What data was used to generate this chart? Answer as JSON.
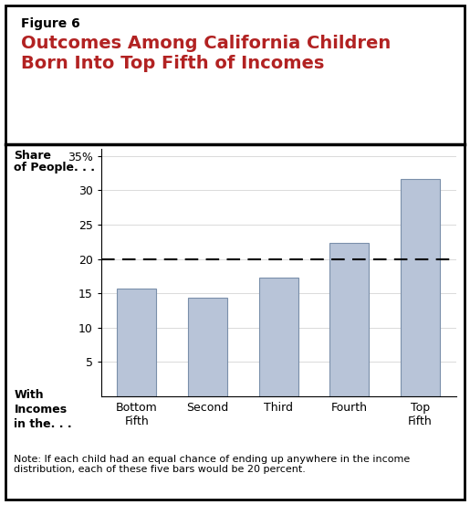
{
  "figure_label": "Figure 6",
  "title_line1": "Outcomes Among California Children",
  "title_line2": "Born Into Top Fifth of Incomes",
  "title_color": "#b22222",
  "categories": [
    "Bottom\nFifth",
    "Second",
    "Third",
    "Fourth",
    "Top\nFifth"
  ],
  "values": [
    15.7,
    14.3,
    17.3,
    22.3,
    31.6
  ],
  "bar_color": "#b8c4d8",
  "bar_edge_color": "#7a8faa",
  "ylim": [
    0,
    36
  ],
  "yticks": [
    5,
    10,
    15,
    20,
    25,
    30,
    35
  ],
  "ytick_labels": [
    "5",
    "10",
    "15",
    "20",
    "25",
    "30",
    "35%"
  ],
  "dashed_line_y": 20,
  "ylabel_line1": "Share",
  "ylabel_line2": "of People. . .",
  "xlabel_line1": "With",
  "xlabel_line2": "Incomes",
  "xlabel_line3": "in the. . .",
  "note": "Note: If each child had an equal chance of ending up anywhere in the income\ndistribution, each of these five bars would be 20 percent.",
  "background_color": "#ffffff",
  "figure_label_fontsize": 10,
  "title_fontsize": 14,
  "tick_fontsize": 9,
  "note_fontsize": 8,
  "border_color": "#000000"
}
